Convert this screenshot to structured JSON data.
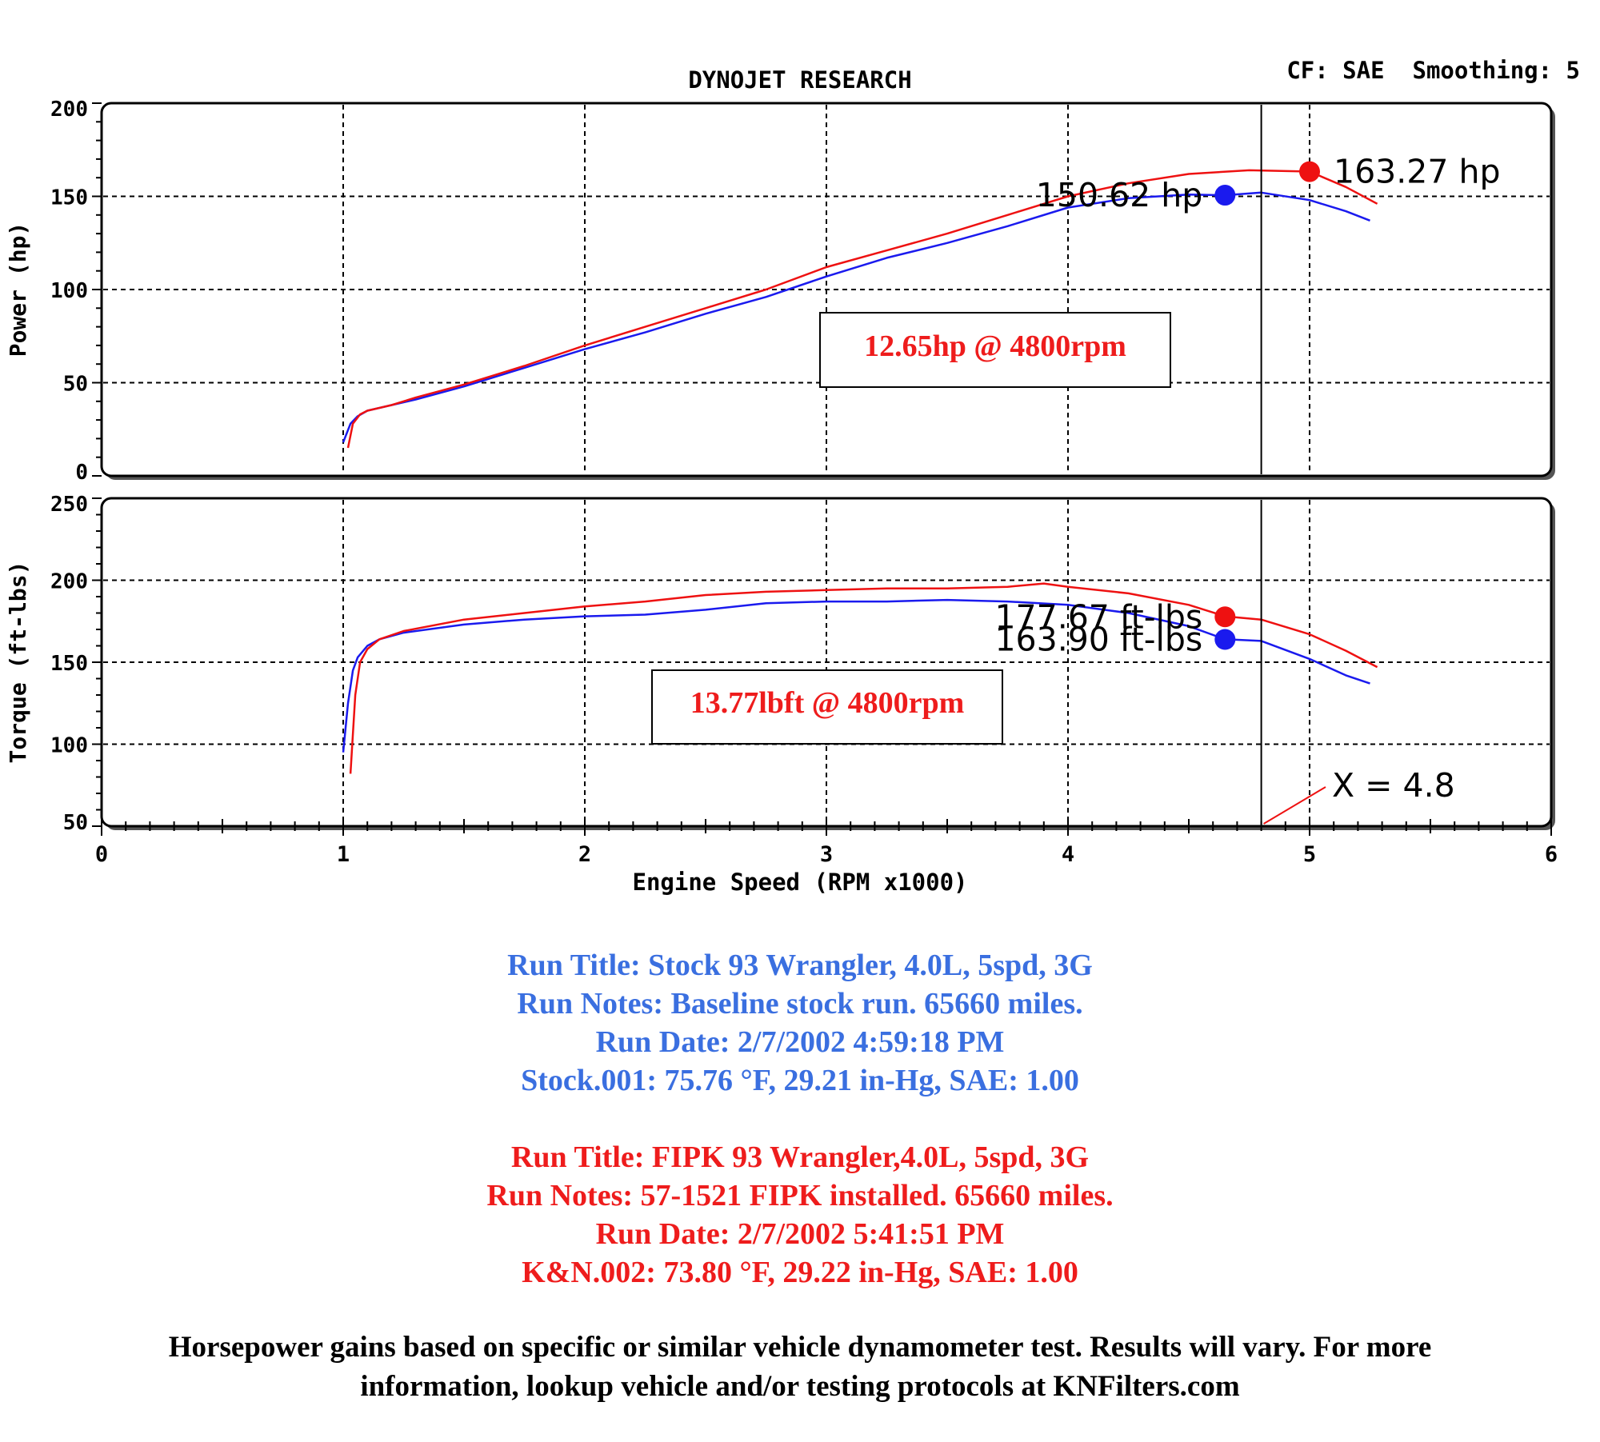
{
  "header": {
    "title": "DYNOJET RESEARCH",
    "settings": "CF: SAE  Smoothing: 5"
  },
  "colors": {
    "stock": "#1a1aee",
    "fipk": "#ee1111",
    "stock_text": "#3a6fe0",
    "fipk_text": "#ee1c1c"
  },
  "chart_data": [
    {
      "type": "line",
      "ylabel": "Power (hp)",
      "xlim": [
        0,
        6
      ],
      "ylim": [
        0,
        200
      ],
      "yticks": [
        0,
        50,
        100,
        150,
        200
      ],
      "grid": true,
      "series": [
        {
          "color": "#1a1aee",
          "x": [
            1.0,
            1.03,
            1.06,
            1.1,
            1.2,
            1.3,
            1.5,
            1.75,
            2.0,
            2.25,
            2.5,
            2.75,
            3.0,
            3.25,
            3.5,
            3.75,
            4.0,
            4.25,
            4.5,
            4.65,
            4.8,
            5.0,
            5.15,
            5.25
          ],
          "y": [
            18,
            28,
            32,
            35,
            38,
            41,
            48,
            58,
            68,
            77,
            87,
            96,
            107,
            117,
            125,
            134,
            144,
            149,
            151,
            150.6,
            152,
            148,
            142,
            137
          ]
        },
        {
          "color": "#ee1111",
          "x": [
            1.02,
            1.04,
            1.07,
            1.1,
            1.2,
            1.3,
            1.5,
            1.75,
            2.0,
            2.25,
            2.5,
            2.75,
            3.0,
            3.25,
            3.5,
            3.75,
            4.0,
            4.25,
            4.5,
            4.75,
            5.0,
            5.15,
            5.28
          ],
          "y": [
            15,
            28,
            33,
            35,
            38,
            42,
            49,
            59,
            70,
            80,
            90,
            100,
            112,
            121,
            130,
            140,
            150,
            157,
            162,
            164,
            163.3,
            155,
            146
          ]
        }
      ],
      "markers": [
        {
          "x": 4.65,
          "y": 150.62,
          "label": "150.62 hp",
          "color": "#1a1aee"
        },
        {
          "x": 5.0,
          "y": 163.27,
          "label": "163.27 hp",
          "color": "#ee1111"
        }
      ],
      "annotation": "12.65hp @ 4800rpm"
    },
    {
      "type": "line",
      "ylabel": "Torque (ft-lbs)",
      "xlabel": "Engine Speed (RPM x1000)",
      "xlim": [
        0,
        6
      ],
      "xticks": [
        0,
        1,
        2,
        3,
        4,
        5,
        6
      ],
      "ylim": [
        50,
        250
      ],
      "yticks": [
        50,
        100,
        150,
        200,
        250
      ],
      "grid": true,
      "series": [
        {
          "color": "#1a1aee",
          "x": [
            1.0,
            1.02,
            1.04,
            1.06,
            1.1,
            1.15,
            1.25,
            1.5,
            1.75,
            2.0,
            2.25,
            2.5,
            2.75,
            3.0,
            3.25,
            3.5,
            3.75,
            4.0,
            4.25,
            4.5,
            4.65,
            4.8,
            5.0,
            5.15,
            5.25
          ],
          "y": [
            95,
            125,
            145,
            153,
            160,
            164,
            168,
            173,
            176,
            178,
            179,
            182,
            186,
            187,
            187,
            188,
            187,
            185,
            180,
            172,
            164,
            163,
            152,
            142,
            137
          ]
        },
        {
          "color": "#ee1111",
          "x": [
            1.03,
            1.05,
            1.07,
            1.1,
            1.15,
            1.25,
            1.5,
            1.75,
            2.0,
            2.25,
            2.5,
            2.75,
            3.0,
            3.25,
            3.5,
            3.75,
            3.9,
            4.0,
            4.25,
            4.5,
            4.65,
            4.8,
            5.0,
            5.15,
            5.28
          ],
          "y": [
            82,
            130,
            150,
            158,
            164,
            169,
            176,
            180,
            184,
            187,
            191,
            193,
            194,
            195,
            195,
            196,
            198,
            196,
            192,
            185,
            178,
            176,
            167,
            157,
            147
          ]
        }
      ],
      "markers": [
        {
          "x": 4.65,
          "y": 177.67,
          "label": "177.67 ft-lbs",
          "color": "#ee1111"
        },
        {
          "x": 4.65,
          "y": 163.9,
          "label": "163.90 ft-lbs",
          "color": "#1a1aee"
        }
      ],
      "annotation": "13.77lbft @ 4800rpm",
      "cursor": {
        "x": 4.8,
        "label": "X = 4.8"
      }
    }
  ],
  "stock_notes": {
    "title": "Run Title: Stock 93 Wrangler, 4.0L, 5spd, 3G",
    "notes": "Run Notes: Baseline stock run. 65660 miles.",
    "date": "Run Date: 2/7/2002 4:59:18 PM",
    "conditions": "Stock.001: 75.76 °F, 29.21 in-Hg, SAE: 1.00"
  },
  "fipk_notes": {
    "title": "Run Title: FIPK 93 Wrangler,4.0L, 5spd, 3G",
    "notes": "Run Notes: 57-1521 FIPK installed. 65660 miles.",
    "date": "Run Date: 2/7/2002 5:41:51 PM",
    "conditions": "K&N.002: 73.80 °F, 29.22 in-Hg, SAE: 1.00"
  },
  "disclaimer": {
    "line1": "Horsepower gains based on specific or similar vehicle dynamometer test. Results will vary. For more",
    "line2": "information, lookup vehicle and/or testing protocols at KNFilters.com"
  }
}
